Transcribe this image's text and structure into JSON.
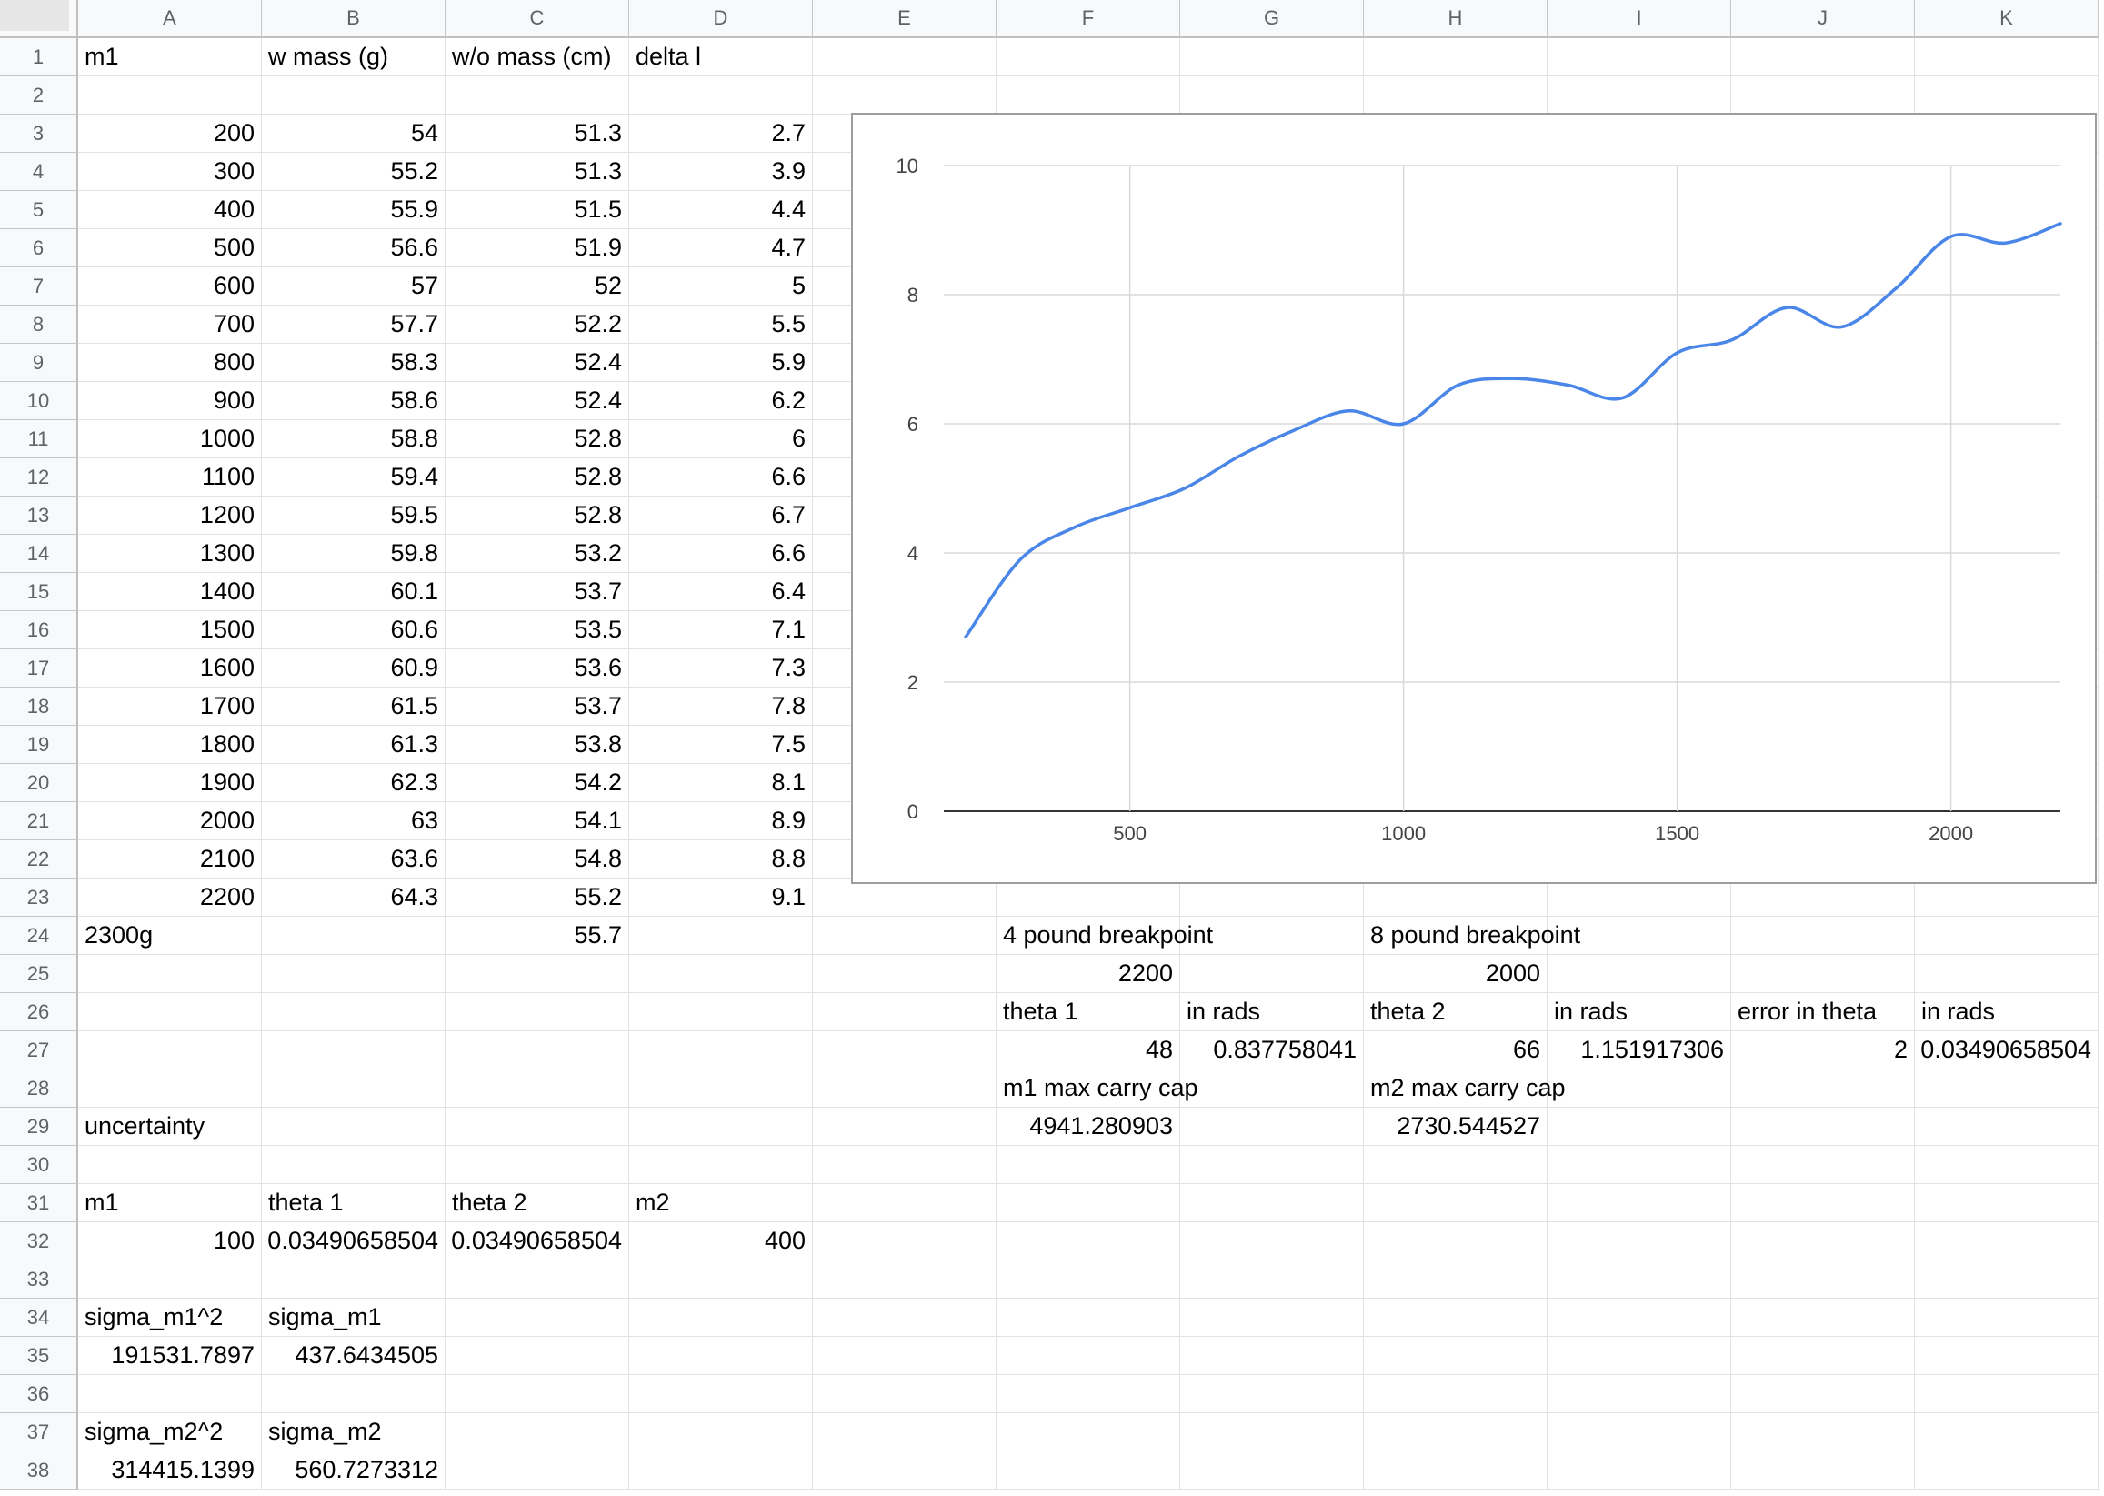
{
  "columns": [
    "A",
    "B",
    "C",
    "D",
    "E",
    "F",
    "G",
    "H",
    "I",
    "J",
    "K"
  ],
  "rows": [
    "1",
    "2",
    "3",
    "4",
    "5",
    "6",
    "7",
    "8",
    "9",
    "10",
    "11",
    "12",
    "13",
    "14",
    "15",
    "16",
    "17",
    "18",
    "19",
    "20",
    "21",
    "22",
    "23",
    "24",
    "25",
    "26",
    "27",
    "28",
    "29",
    "30",
    "31",
    "32",
    "33",
    "34",
    "35",
    "36",
    "37",
    "38"
  ],
  "cells": [
    {
      "r": 1,
      "c": 0,
      "v": "m1",
      "t": "txt"
    },
    {
      "r": 1,
      "c": 1,
      "v": "w mass (g)",
      "t": "txt"
    },
    {
      "r": 1,
      "c": 2,
      "v": "w/o mass (cm)",
      "t": "txt"
    },
    {
      "r": 1,
      "c": 3,
      "v": "delta l",
      "t": "txt"
    },
    {
      "r": 3,
      "c": 0,
      "v": "200",
      "t": "num"
    },
    {
      "r": 3,
      "c": 1,
      "v": "54",
      "t": "num"
    },
    {
      "r": 3,
      "c": 2,
      "v": "51.3",
      "t": "num"
    },
    {
      "r": 3,
      "c": 3,
      "v": "2.7",
      "t": "num"
    },
    {
      "r": 4,
      "c": 0,
      "v": "300",
      "t": "num"
    },
    {
      "r": 4,
      "c": 1,
      "v": "55.2",
      "t": "num"
    },
    {
      "r": 4,
      "c": 2,
      "v": "51.3",
      "t": "num"
    },
    {
      "r": 4,
      "c": 3,
      "v": "3.9",
      "t": "num"
    },
    {
      "r": 5,
      "c": 0,
      "v": "400",
      "t": "num"
    },
    {
      "r": 5,
      "c": 1,
      "v": "55.9",
      "t": "num"
    },
    {
      "r": 5,
      "c": 2,
      "v": "51.5",
      "t": "num"
    },
    {
      "r": 5,
      "c": 3,
      "v": "4.4",
      "t": "num"
    },
    {
      "r": 6,
      "c": 0,
      "v": "500",
      "t": "num"
    },
    {
      "r": 6,
      "c": 1,
      "v": "56.6",
      "t": "num"
    },
    {
      "r": 6,
      "c": 2,
      "v": "51.9",
      "t": "num"
    },
    {
      "r": 6,
      "c": 3,
      "v": "4.7",
      "t": "num"
    },
    {
      "r": 7,
      "c": 0,
      "v": "600",
      "t": "num"
    },
    {
      "r": 7,
      "c": 1,
      "v": "57",
      "t": "num"
    },
    {
      "r": 7,
      "c": 2,
      "v": "52",
      "t": "num"
    },
    {
      "r": 7,
      "c": 3,
      "v": "5",
      "t": "num"
    },
    {
      "r": 8,
      "c": 0,
      "v": "700",
      "t": "num"
    },
    {
      "r": 8,
      "c": 1,
      "v": "57.7",
      "t": "num"
    },
    {
      "r": 8,
      "c": 2,
      "v": "52.2",
      "t": "num"
    },
    {
      "r": 8,
      "c": 3,
      "v": "5.5",
      "t": "num"
    },
    {
      "r": 9,
      "c": 0,
      "v": "800",
      "t": "num"
    },
    {
      "r": 9,
      "c": 1,
      "v": "58.3",
      "t": "num"
    },
    {
      "r": 9,
      "c": 2,
      "v": "52.4",
      "t": "num"
    },
    {
      "r": 9,
      "c": 3,
      "v": "5.9",
      "t": "num"
    },
    {
      "r": 10,
      "c": 0,
      "v": "900",
      "t": "num"
    },
    {
      "r": 10,
      "c": 1,
      "v": "58.6",
      "t": "num"
    },
    {
      "r": 10,
      "c": 2,
      "v": "52.4",
      "t": "num"
    },
    {
      "r": 10,
      "c": 3,
      "v": "6.2",
      "t": "num"
    },
    {
      "r": 11,
      "c": 0,
      "v": "1000",
      "t": "num"
    },
    {
      "r": 11,
      "c": 1,
      "v": "58.8",
      "t": "num"
    },
    {
      "r": 11,
      "c": 2,
      "v": "52.8",
      "t": "num"
    },
    {
      "r": 11,
      "c": 3,
      "v": "6",
      "t": "num"
    },
    {
      "r": 12,
      "c": 0,
      "v": "1100",
      "t": "num"
    },
    {
      "r": 12,
      "c": 1,
      "v": "59.4",
      "t": "num"
    },
    {
      "r": 12,
      "c": 2,
      "v": "52.8",
      "t": "num"
    },
    {
      "r": 12,
      "c": 3,
      "v": "6.6",
      "t": "num"
    },
    {
      "r": 13,
      "c": 0,
      "v": "1200",
      "t": "num"
    },
    {
      "r": 13,
      "c": 1,
      "v": "59.5",
      "t": "num"
    },
    {
      "r": 13,
      "c": 2,
      "v": "52.8",
      "t": "num"
    },
    {
      "r": 13,
      "c": 3,
      "v": "6.7",
      "t": "num"
    },
    {
      "r": 14,
      "c": 0,
      "v": "1300",
      "t": "num"
    },
    {
      "r": 14,
      "c": 1,
      "v": "59.8",
      "t": "num"
    },
    {
      "r": 14,
      "c": 2,
      "v": "53.2",
      "t": "num"
    },
    {
      "r": 14,
      "c": 3,
      "v": "6.6",
      "t": "num"
    },
    {
      "r": 15,
      "c": 0,
      "v": "1400",
      "t": "num"
    },
    {
      "r": 15,
      "c": 1,
      "v": "60.1",
      "t": "num"
    },
    {
      "r": 15,
      "c": 2,
      "v": "53.7",
      "t": "num"
    },
    {
      "r": 15,
      "c": 3,
      "v": "6.4",
      "t": "num"
    },
    {
      "r": 16,
      "c": 0,
      "v": "1500",
      "t": "num"
    },
    {
      "r": 16,
      "c": 1,
      "v": "60.6",
      "t": "num"
    },
    {
      "r": 16,
      "c": 2,
      "v": "53.5",
      "t": "num"
    },
    {
      "r": 16,
      "c": 3,
      "v": "7.1",
      "t": "num"
    },
    {
      "r": 17,
      "c": 0,
      "v": "1600",
      "t": "num"
    },
    {
      "r": 17,
      "c": 1,
      "v": "60.9",
      "t": "num"
    },
    {
      "r": 17,
      "c": 2,
      "v": "53.6",
      "t": "num"
    },
    {
      "r": 17,
      "c": 3,
      "v": "7.3",
      "t": "num"
    },
    {
      "r": 18,
      "c": 0,
      "v": "1700",
      "t": "num"
    },
    {
      "r": 18,
      "c": 1,
      "v": "61.5",
      "t": "num"
    },
    {
      "r": 18,
      "c": 2,
      "v": "53.7",
      "t": "num"
    },
    {
      "r": 18,
      "c": 3,
      "v": "7.8",
      "t": "num"
    },
    {
      "r": 19,
      "c": 0,
      "v": "1800",
      "t": "num"
    },
    {
      "r": 19,
      "c": 1,
      "v": "61.3",
      "t": "num"
    },
    {
      "r": 19,
      "c": 2,
      "v": "53.8",
      "t": "num"
    },
    {
      "r": 19,
      "c": 3,
      "v": "7.5",
      "t": "num"
    },
    {
      "r": 20,
      "c": 0,
      "v": "1900",
      "t": "num"
    },
    {
      "r": 20,
      "c": 1,
      "v": "62.3",
      "t": "num"
    },
    {
      "r": 20,
      "c": 2,
      "v": "54.2",
      "t": "num"
    },
    {
      "r": 20,
      "c": 3,
      "v": "8.1",
      "t": "num"
    },
    {
      "r": 21,
      "c": 0,
      "v": "2000",
      "t": "num"
    },
    {
      "r": 21,
      "c": 1,
      "v": "63",
      "t": "num"
    },
    {
      "r": 21,
      "c": 2,
      "v": "54.1",
      "t": "num"
    },
    {
      "r": 21,
      "c": 3,
      "v": "8.9",
      "t": "num"
    },
    {
      "r": 22,
      "c": 0,
      "v": "2100",
      "t": "num"
    },
    {
      "r": 22,
      "c": 1,
      "v": "63.6",
      "t": "num"
    },
    {
      "r": 22,
      "c": 2,
      "v": "54.8",
      "t": "num"
    },
    {
      "r": 22,
      "c": 3,
      "v": "8.8",
      "t": "num"
    },
    {
      "r": 23,
      "c": 0,
      "v": "2200",
      "t": "num"
    },
    {
      "r": 23,
      "c": 1,
      "v": "64.3",
      "t": "num"
    },
    {
      "r": 23,
      "c": 2,
      "v": "55.2",
      "t": "num"
    },
    {
      "r": 23,
      "c": 3,
      "v": "9.1",
      "t": "num"
    },
    {
      "r": 24,
      "c": 0,
      "v": "2300g",
      "t": "txt"
    },
    {
      "r": 24,
      "c": 2,
      "v": "55.7",
      "t": "num"
    },
    {
      "r": 24,
      "c": 5,
      "v": "4 pound breakpoint",
      "t": "txt"
    },
    {
      "r": 24,
      "c": 7,
      "v": "8 pound breakpoint",
      "t": "txt"
    },
    {
      "r": 25,
      "c": 5,
      "v": "2200",
      "t": "num"
    },
    {
      "r": 25,
      "c": 7,
      "v": "2000",
      "t": "num"
    },
    {
      "r": 26,
      "c": 5,
      "v": "theta 1",
      "t": "txt"
    },
    {
      "r": 26,
      "c": 6,
      "v": "in rads",
      "t": "txt"
    },
    {
      "r": 26,
      "c": 7,
      "v": "theta 2",
      "t": "txt"
    },
    {
      "r": 26,
      "c": 8,
      "v": "in rads",
      "t": "txt"
    },
    {
      "r": 26,
      "c": 9,
      "v": "error in theta",
      "t": "txt"
    },
    {
      "r": 26,
      "c": 10,
      "v": "in rads",
      "t": "txt"
    },
    {
      "r": 27,
      "c": 5,
      "v": "48",
      "t": "num"
    },
    {
      "r": 27,
      "c": 6,
      "v": "0.837758041",
      "t": "num"
    },
    {
      "r": 27,
      "c": 7,
      "v": "66",
      "t": "num"
    },
    {
      "r": 27,
      "c": 8,
      "v": "1.151917306",
      "t": "num"
    },
    {
      "r": 27,
      "c": 9,
      "v": "2",
      "t": "num"
    },
    {
      "r": 27,
      "c": 10,
      "v": "0.03490658504",
      "t": "num"
    },
    {
      "r": 28,
      "c": 5,
      "v": "m1 max carry cap",
      "t": "txt"
    },
    {
      "r": 28,
      "c": 7,
      "v": "m2 max carry cap",
      "t": "txt"
    },
    {
      "r": 29,
      "c": 0,
      "v": "uncertainty",
      "t": "txt"
    },
    {
      "r": 29,
      "c": 5,
      "v": "4941.280903",
      "t": "num"
    },
    {
      "r": 29,
      "c": 7,
      "v": "2730.544527",
      "t": "num"
    },
    {
      "r": 31,
      "c": 0,
      "v": "m1",
      "t": "txt"
    },
    {
      "r": 31,
      "c": 1,
      "v": "theta 1",
      "t": "txt"
    },
    {
      "r": 31,
      "c": 2,
      "v": "theta 2",
      "t": "txt"
    },
    {
      "r": 31,
      "c": 3,
      "v": "m2",
      "t": "txt"
    },
    {
      "r": 32,
      "c": 0,
      "v": "100",
      "t": "num"
    },
    {
      "r": 32,
      "c": 1,
      "v": "0.03490658504",
      "t": "num"
    },
    {
      "r": 32,
      "c": 2,
      "v": "0.03490658504",
      "t": "num"
    },
    {
      "r": 32,
      "c": 3,
      "v": "400",
      "t": "num"
    },
    {
      "r": 34,
      "c": 0,
      "v": "sigma_m1^2",
      "t": "txt"
    },
    {
      "r": 34,
      "c": 1,
      "v": "sigma_m1",
      "t": "txt"
    },
    {
      "r": 35,
      "c": 0,
      "v": "191531.7897",
      "t": "num"
    },
    {
      "r": 35,
      "c": 1,
      "v": "437.6434505",
      "t": "num"
    },
    {
      "r": 37,
      "c": 0,
      "v": "sigma_m2^2",
      "t": "txt"
    },
    {
      "r": 37,
      "c": 1,
      "v": "sigma_m2",
      "t": "txt"
    },
    {
      "r": 38,
      "c": 0,
      "v": "314415.1399",
      "t": "num"
    },
    {
      "r": 38,
      "c": 1,
      "v": "560.7273312",
      "t": "num"
    }
  ],
  "chart_data": {
    "type": "line",
    "x": [
      200,
      300,
      400,
      500,
      600,
      700,
      800,
      900,
      1000,
      1100,
      1200,
      1300,
      1400,
      1500,
      1600,
      1700,
      1800,
      1900,
      2000,
      2100,
      2200
    ],
    "series": [
      {
        "values": [
          2.7,
          3.9,
          4.4,
          4.7,
          5.0,
          5.5,
          5.9,
          6.2,
          6.0,
          6.6,
          6.7,
          6.6,
          6.4,
          7.1,
          7.3,
          7.8,
          7.5,
          8.1,
          8.9,
          8.8,
          9.1
        ]
      }
    ],
    "xticks": [
      500,
      1000,
      1500,
      2000
    ],
    "yticks": [
      0,
      2,
      4,
      6,
      8,
      10
    ],
    "xlim": [
      160,
      2200
    ],
    "ylim": [
      0,
      10
    ],
    "smooth": true,
    "grid": true,
    "line_color": "#4a86e8",
    "grid_color": "#d9d9d9"
  }
}
